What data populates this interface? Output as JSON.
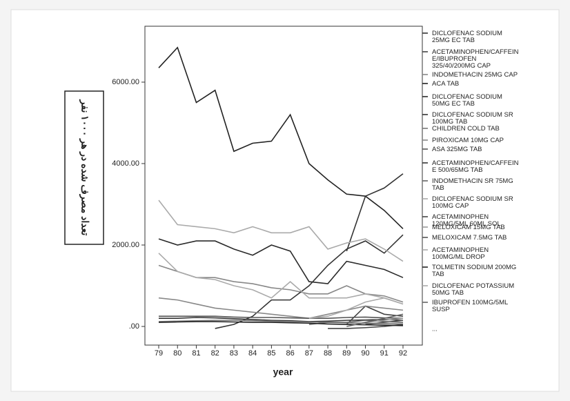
{
  "chart_data": {
    "type": "line",
    "y_label": "تعداد مصرف شده در هر ۱۰۰۰ نفر",
    "x_label": "year",
    "categories": [
      "79",
      "80",
      "81",
      "82",
      "83",
      "84",
      "85",
      "86",
      "87",
      "88",
      "89",
      "90",
      "91",
      "92"
    ],
    "ylim": [
      -458,
      7373
    ],
    "yticks": [
      {
        "value": 0,
        "label": ".00"
      },
      {
        "value": 2000,
        "label": "2000.00"
      },
      {
        "value": 4000,
        "label": "4000.00"
      },
      {
        "value": 6000,
        "label": "6000.00"
      }
    ],
    "legend_more": "...",
    "series": [
      {
        "name": "DICLOFENAC SODIUM\n25MG EC TAB",
        "color": "#333333",
        "values": [
          200,
          200,
          220,
          210,
          190,
          170,
          150,
          140,
          120,
          130,
          150,
          160,
          170,
          150
        ]
      },
      {
        "name": "ACETAMINOPHEN/CAFFEIN\nE/IBUPROFEN\n325/40/200MG CAP",
        "color": "#444444",
        "values": [
          null,
          null,
          null,
          null,
          null,
          null,
          null,
          null,
          null,
          null,
          50,
          500,
          300,
          250
        ]
      },
      {
        "name": "INDOMETHACIN 25MG CAP",
        "color": "#888888",
        "values": [
          1500,
          1350,
          1200,
          1200,
          1100,
          1050,
          950,
          900,
          800,
          800,
          1000,
          800,
          750,
          600
        ]
      },
      {
        "name": "ACA TAB",
        "color": "#222222",
        "values": [
          6350,
          6850,
          5500,
          5800,
          4300,
          4500,
          4550,
          5200,
          4000,
          3600,
          3250,
          3200,
          2850,
          2400
        ]
      },
      {
        "name": "DICLOFENAC SODIUM\n50MG EC TAB",
        "color": "#2a2a2a",
        "values": [
          2150,
          2000,
          2100,
          2100,
          1900,
          1750,
          2000,
          1850,
          1100,
          1050,
          1600,
          1500,
          1400,
          1200
        ]
      },
      {
        "name": "DICLOFENAC SODIUM SR\n100MG TAB",
        "color": "#333333",
        "values": [
          null,
          null,
          null,
          -50,
          50,
          250,
          650,
          650,
          1000,
          1500,
          1900,
          2100,
          1800,
          2250
        ]
      },
      {
        "name": "CHILDREN COLD TAB",
        "color": "#777777",
        "values": [
          120,
          130,
          140,
          150,
          150,
          140,
          130,
          120,
          110,
          100,
          90,
          80,
          70,
          60
        ]
      },
      {
        "name": "PIROXICAM 10MG CAP",
        "color": "#888888",
        "values": [
          700,
          650,
          550,
          450,
          400,
          350,
          300,
          250,
          200,
          300,
          400,
          500,
          450,
          400
        ]
      },
      {
        "name": "ASA 325MG TAB",
        "color": "#555555",
        "values": [
          250,
          250,
          250,
          250,
          230,
          220,
          220,
          210,
          200,
          200,
          220,
          230,
          210,
          200
        ]
      },
      {
        "name": "ACETAMINOPHEN/CAFFEIN\nE 500/65MG TAB",
        "color": "#333333",
        "values": [
          null,
          null,
          null,
          null,
          null,
          null,
          null,
          null,
          null,
          null,
          1850,
          3200,
          3400,
          3750
        ]
      },
      {
        "name": "INDOMETHACIN SR 75MG\nTAB",
        "color": "#666666",
        "values": [
          null,
          null,
          null,
          null,
          null,
          null,
          null,
          null,
          50,
          100,
          100,
          150,
          120,
          100
        ]
      },
      {
        "name": "DICLOFENAC SODIUM SR\n100MG CAP",
        "color": "#aaaaaa",
        "values": [
          3100,
          2500,
          2450,
          2400,
          2300,
          2450,
          2300,
          2300,
          2450,
          1900,
          2050,
          2150,
          1900,
          1600
        ]
      },
      {
        "name": "ACETAMINOPHEN\n120MG/5ML 60ML SOL",
        "color": "#444444",
        "values": [
          null,
          null,
          null,
          null,
          null,
          null,
          null,
          null,
          null,
          -50,
          -50,
          -30,
          0,
          50
        ]
      },
      {
        "name": "MELOXICAM 15MG TAB",
        "color": "#999999",
        "values": [
          null,
          null,
          null,
          null,
          null,
          null,
          null,
          null,
          null,
          null,
          null,
          100,
          150,
          200
        ]
      },
      {
        "name": "MELOXICAM 7.5MG TAB",
        "color": "#555555",
        "values": [
          null,
          null,
          null,
          null,
          null,
          null,
          null,
          null,
          null,
          null,
          null,
          50,
          100,
          150
        ]
      },
      {
        "name": "ACETAMINOPHEN\n100MG/ML DROP",
        "color": "#aaaaaa",
        "values": [
          1800,
          1350,
          1200,
          1150,
          1000,
          900,
          700,
          1100,
          700,
          700,
          700,
          800,
          700,
          550
        ]
      },
      {
        "name": "TOLMETIN SODIUM 200MG\nTAB",
        "color": "#222222",
        "values": [
          100,
          110,
          120,
          120,
          110,
          100,
          100,
          90,
          80,
          60,
          50,
          40,
          30,
          20
        ]
      },
      {
        "name": "DICLOFENAC POTASSIUM\n50MG TAB",
        "color": "#aaaaaa",
        "values": [
          null,
          null,
          null,
          null,
          null,
          null,
          null,
          null,
          200,
          250,
          400,
          600,
          700,
          550
        ]
      },
      {
        "name": "IBUPROFEN 100MG/5ML\nSUSP",
        "color": "#666666",
        "values": [
          null,
          null,
          null,
          null,
          null,
          null,
          null,
          null,
          null,
          null,
          0,
          100,
          200,
          300
        ]
      }
    ]
  }
}
